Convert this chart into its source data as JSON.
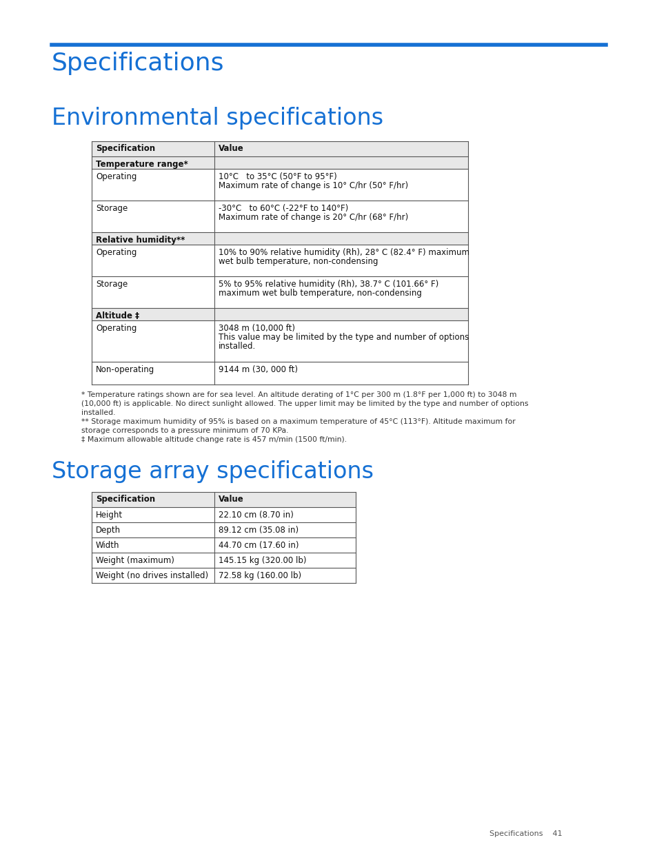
{
  "page_bg": "#ffffff",
  "blue_line_color": "#1570d4",
  "title1": "Specifications",
  "title2": "Environmental specifications",
  "title3": "Storage array specifications",
  "title_color": "#1570d4",
  "title1_fontsize": 26,
  "title2_fontsize": 24,
  "title3_fontsize": 24,
  "env_table_header": [
    "Specification",
    "Value"
  ],
  "env_table_rows": [
    [
      "Temperature range*",
      ""
    ],
    [
      "Operating",
      "10°C   to 35°C (50°F to 95°F)\nMaximum rate of change is 10° C/hr (50° F/hr)"
    ],
    [
      "Storage",
      "-30°C   to 60°C (-22°F to 140°F)\nMaximum rate of change is 20° C/hr (68° F/hr)"
    ],
    [
      "Relative humidity**",
      ""
    ],
    [
      "Operating",
      "10% to 90% relative humidity (Rh), 28° C (82.4° F) maximum\nwet bulb temperature, non-condensing"
    ],
    [
      "Storage",
      "5% to 95% relative humidity (Rh), 38.7° C (101.66° F)\nmaximum wet bulb temperature, non-condensing"
    ],
    [
      "Altitude ‡",
      ""
    ],
    [
      "Operating",
      "3048 m (10,000 ft)\nThis value may be limited by the type and number of options\ninstalled."
    ],
    [
      "Non-operating",
      "9144 m (30, 000 ft)"
    ]
  ],
  "env_bold_rows": [
    0,
    3,
    6
  ],
  "env_footnote_lines": [
    "* Temperature ratings shown are for sea level. An altitude derating of 1°C per 300 m (1.8°F per 1,000 ft) to 3048 m",
    "(10,000 ft) is applicable. No direct sunlight allowed. The upper limit may be limited by the type and number of options",
    "installed.",
    "** Storage maximum humidity of 95% is based on a maximum temperature of 45°C (113°F). Altitude maximum for",
    "storage corresponds to a pressure minimum of 70 KPa.",
    "‡ Maximum allowable altitude change rate is 457 m/min (1500 ft/min)."
  ],
  "storage_table_header": [
    "Specification",
    "Value"
  ],
  "storage_table_rows": [
    [
      "Height",
      "22.10 cm (8.70 in)"
    ],
    [
      "Depth",
      "89.12 cm (35.08 in)"
    ],
    [
      "Width",
      "44.70 cm (17.60 in)"
    ],
    [
      "Weight (maximum)",
      "145.15 kg (320.00 lb)"
    ],
    [
      "Weight (no drives installed)",
      "72.58 kg (160.00 lb)"
    ]
  ],
  "footer_text": "Specifications    41",
  "table_border_color": "#555555",
  "text_color": "#111111"
}
